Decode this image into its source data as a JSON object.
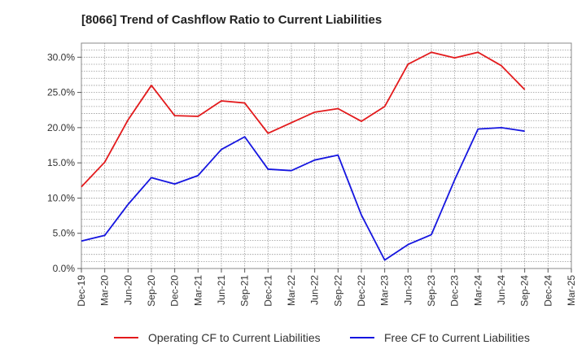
{
  "chart_data": {
    "type": "line",
    "title": "[8066]  Trend of Cashflow Ratio to Current Liabilities",
    "xlabel": "",
    "ylabel": "",
    "categories": [
      "Dec-19",
      "Mar-20",
      "Jun-20",
      "Sep-20",
      "Dec-20",
      "Mar-21",
      "Jun-21",
      "Sep-21",
      "Dec-21",
      "Mar-22",
      "Jun-22",
      "Sep-22",
      "Dec-22",
      "Mar-23",
      "Jun-23",
      "Sep-23",
      "Dec-23",
      "Mar-24",
      "Jun-24",
      "Sep-24",
      "Dec-24",
      "Mar-25"
    ],
    "ylim": [
      0,
      32
    ],
    "yticks": [
      0,
      5,
      10,
      15,
      20,
      25,
      30
    ],
    "ytick_labels": [
      "0.0%",
      "5.0%",
      "10.0%",
      "15.0%",
      "20.0%",
      "25.0%",
      "30.0%"
    ],
    "grid": true,
    "legend_position": "bottom",
    "series": [
      {
        "name": "Operating CF to Current Liabilities",
        "color": "#e31a1c",
        "values": [
          11.6,
          15.1,
          21.1,
          26.0,
          21.7,
          21.6,
          23.8,
          23.5,
          19.2,
          20.7,
          22.2,
          22.7,
          20.9,
          23.0,
          29.0,
          30.7,
          29.9,
          30.7,
          28.8,
          25.4,
          null,
          null
        ]
      },
      {
        "name": "Free CF to Current Liabilities",
        "color": "#1515e0",
        "values": [
          3.9,
          4.7,
          9.1,
          12.9,
          12.0,
          13.2,
          16.9,
          18.7,
          14.1,
          13.9,
          15.4,
          16.1,
          7.6,
          1.2,
          3.4,
          4.8,
          12.6,
          19.8,
          20.0,
          19.5,
          null,
          null
        ]
      }
    ]
  }
}
